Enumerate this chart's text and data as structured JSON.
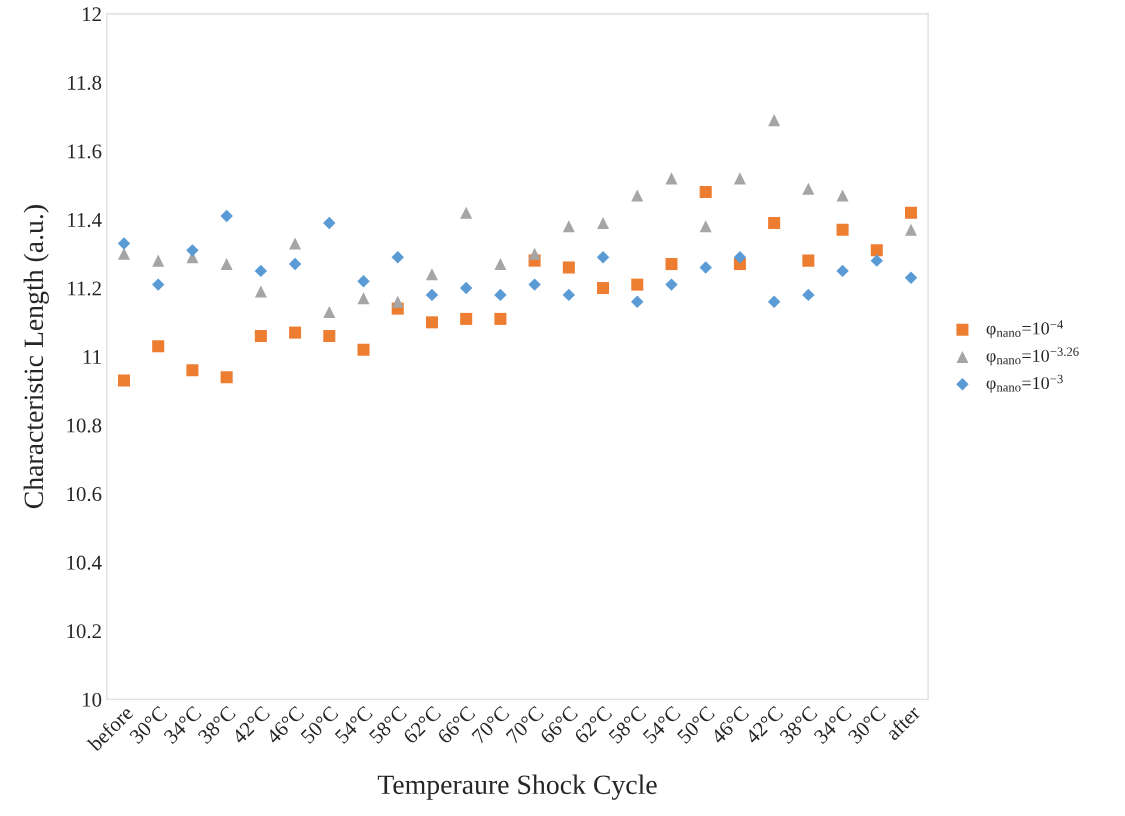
{
  "chart_data": {
    "type": "scatter",
    "xlabel": "Temperaure Shock Cycle",
    "ylabel": "Characteristic Length (a.u.)",
    "categories": [
      "before",
      "30°C",
      "34°C",
      "38°C",
      "42°C",
      "46°C",
      "50°C",
      "54°C",
      "58°C",
      "62°C",
      "66°C",
      "70°C",
      "70°C",
      "66°C",
      "62°C",
      "58°C",
      "54°C",
      "50°C",
      "46°C",
      "42°C",
      "38°C",
      "34°C",
      "30°C",
      "after"
    ],
    "series": [
      {
        "name": "φ$_{nano}$=10$^{−4}$",
        "color": "#ed7d31",
        "marker": "square",
        "values": [
          10.93,
          11.03,
          10.96,
          10.94,
          11.06,
          11.07,
          11.06,
          11.02,
          11.14,
          11.1,
          11.11,
          11.11,
          11.28,
          11.26,
          11.2,
          11.21,
          11.27,
          11.48,
          11.27,
          11.39,
          11.28,
          11.37,
          11.31,
          11.42
        ]
      },
      {
        "name": "φ$_{nano}$=10$^{−3.26}$",
        "color": "#a5a5a5",
        "marker": "triangle",
        "values": [
          11.3,
          11.28,
          11.29,
          11.27,
          11.19,
          11.33,
          11.13,
          11.17,
          11.16,
          11.24,
          11.42,
          11.27,
          11.3,
          11.38,
          11.39,
          11.47,
          11.52,
          11.38,
          11.52,
          11.69,
          11.49,
          11.47,
          null,
          11.37
        ]
      },
      {
        "name": "φ$_{nano}$=10$^{−3}$",
        "color": "#5b9bd5",
        "marker": "diamond",
        "values": [
          11.33,
          11.21,
          11.31,
          11.41,
          11.25,
          11.27,
          11.39,
          11.22,
          11.29,
          11.18,
          11.2,
          11.18,
          11.21,
          11.18,
          11.29,
          11.16,
          11.21,
          11.26,
          11.29,
          11.16,
          11.18,
          11.25,
          11.28,
          11.23
        ]
      }
    ],
    "ylim": [
      10,
      12
    ],
    "yticks": [
      10,
      10.2,
      10.4,
      10.6,
      10.8,
      11,
      11.2,
      11.4,
      11.6,
      11.8,
      12
    ],
    "grid": false,
    "legend": "right"
  }
}
